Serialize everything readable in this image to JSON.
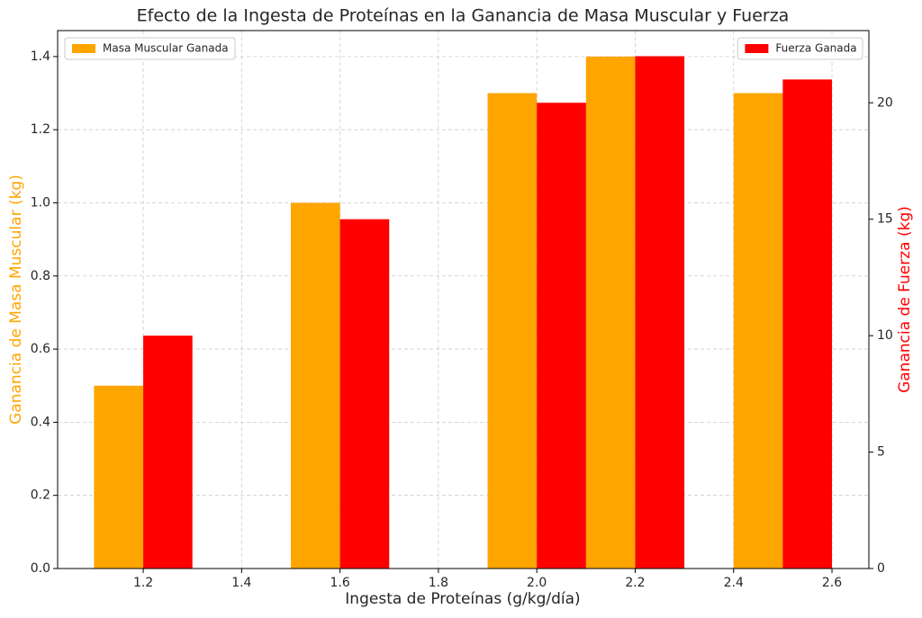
{
  "chart_data": {
    "type": "bar",
    "title": "Efecto de la Ingesta de Proteínas en la Ganancia de Masa Muscular y Fuerza",
    "xlabel": "Ingesta de Proteínas (g/kg/día)",
    "ylabel": "Ganancia de Masa Muscular (kg)",
    "y2label": "Ganancia de Fuerza (kg)",
    "x": [
      1.2,
      1.6,
      2.0,
      2.2,
      2.5
    ],
    "series": [
      {
        "name": "Masa Muscular Ganada",
        "color": "#ffa500",
        "values": [
          0.5,
          1.0,
          1.3,
          1.4,
          1.3
        ],
        "legend": "upper left"
      },
      {
        "name": "Fuerza Ganada",
        "color": "#ff0000",
        "values": [
          10,
          15,
          20,
          22,
          21
        ],
        "axis": "y2",
        "legend": "upper right"
      }
    ],
    "xlim": [
      1.026,
      2.675
    ],
    "xticks": [
      1.2,
      1.4,
      1.6,
      1.8,
      {
        "value": 2,
        "label": "2.0"
      },
      2.2,
      2.4,
      2.6
    ],
    "ylim": [
      0,
      1.471
    ],
    "yticks": [
      {
        "value": 0,
        "label": "0.0"
      },
      0.2,
      0.4,
      0.6,
      0.8,
      {
        "value": 1,
        "label": "1.0"
      },
      1.2,
      1.4
    ],
    "y2lim": [
      0,
      23.1
    ],
    "y2ticks": [
      0,
      5,
      10,
      15,
      20
    ],
    "grid": true
  }
}
